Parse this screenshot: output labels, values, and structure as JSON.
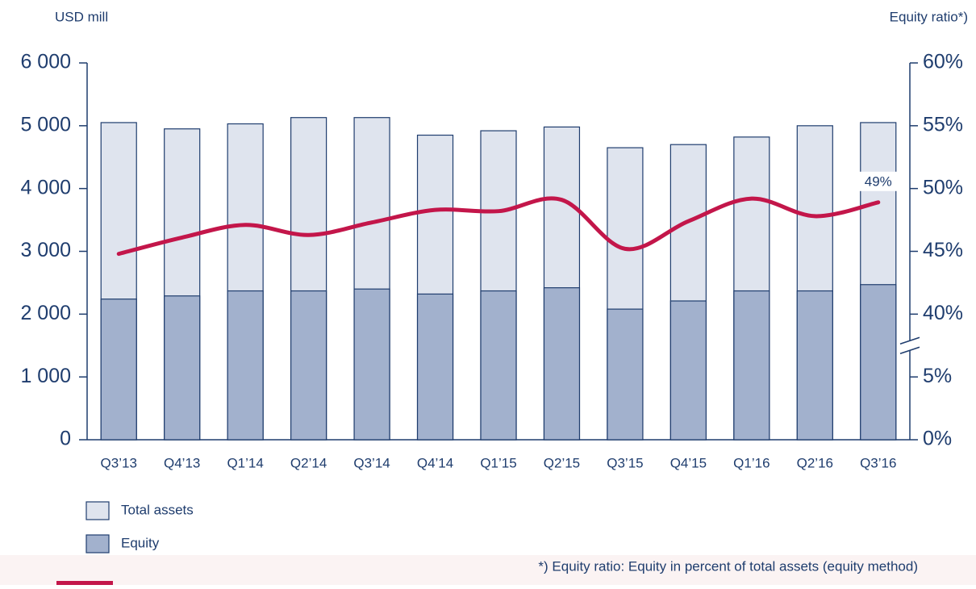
{
  "chart_data": {
    "type": "bar",
    "y_axis_label": "USD mill",
    "y2_axis_label": "Equity ratio*)",
    "footnote": "*) Equity ratio: Equity in percent of total assets (equity method)",
    "categories": [
      "Q3’13",
      "Q4’13",
      "Q1’14",
      "Q2’14",
      "Q3’14",
      "Q4’14",
      "Q1’15",
      "Q2’15",
      "Q3’15",
      "Q4’15",
      "Q1’16",
      "Q2’16",
      "Q3’16"
    ],
    "series": [
      {
        "name": "Total assets",
        "type": "bar",
        "color": "#dfe4ee",
        "values": [
          5050,
          4950,
          5030,
          5130,
          5130,
          4850,
          4920,
          4980,
          4650,
          4700,
          4820,
          5000,
          5050
        ]
      },
      {
        "name": "Equity",
        "type": "bar",
        "color": "#a2b1cd",
        "values": [
          2240,
          2290,
          2370,
          2370,
          2400,
          2320,
          2370,
          2420,
          2080,
          2210,
          2370,
          2370,
          2470
        ]
      },
      {
        "name": "Equity ratio",
        "type": "line",
        "axis": "y2",
        "color": "#c3164a",
        "values": [
          44.8,
          46.1,
          47.1,
          46.3,
          47.3,
          48.3,
          48.2,
          49.1,
          45.2,
          47.4,
          49.2,
          47.8,
          48.9
        ],
        "value_labels": [
          null,
          null,
          null,
          null,
          null,
          null,
          null,
          null,
          null,
          null,
          null,
          null,
          "49%"
        ]
      }
    ],
    "ylim": [
      0,
      6000
    ],
    "yticks": [
      0,
      {
        "value": 1000,
        "label": "1 000"
      },
      {
        "value": 2000,
        "label": "2 000"
      },
      {
        "value": 3000,
        "label": "3 000"
      },
      {
        "value": 4000,
        "label": "4 000"
      },
      {
        "value": 5000,
        "label": "5 000"
      },
      {
        "value": 6000,
        "label": "6 000"
      }
    ],
    "y2lim": [
      0,
      60
    ],
    "y2_break": [
      5,
      40
    ],
    "y2ticks": [
      {
        "value": 0,
        "label": "0%"
      },
      {
        "value": 5,
        "label": "5%"
      },
      {
        "value": 40,
        "label": "40%"
      },
      {
        "value": 45,
        "label": "45%"
      },
      {
        "value": 50,
        "label": "50%"
      },
      {
        "value": 55,
        "label": "55%"
      },
      {
        "value": 60,
        "label": "60%"
      }
    ],
    "axis_color": "#1f3d6e",
    "grid": false
  }
}
